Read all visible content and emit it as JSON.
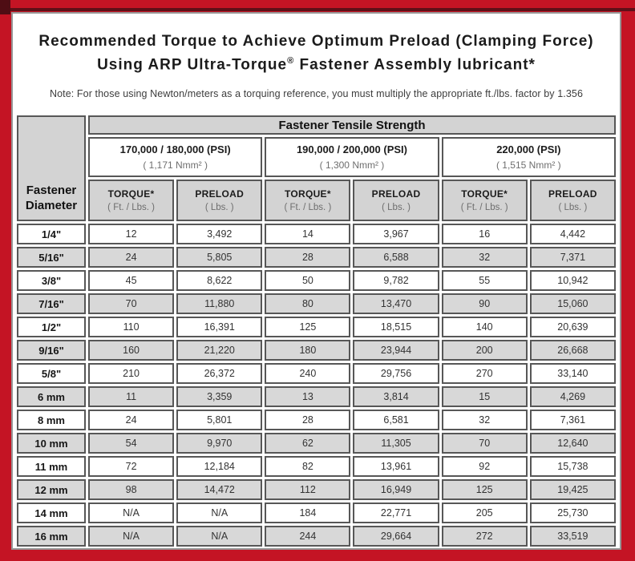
{
  "header": {
    "title_line1": "Recommended Torque to Achieve Optimum Preload (Clamping Force)",
    "title_line2": {
      "pre": "Using ARP Ultra-Torque",
      "sup": "®",
      "post": " Fastener Assembly lubricant*"
    },
    "note": "Note: For those using Newton/meters as a torquing reference, you must multiply the appropriate ft./lbs. factor by 1.356"
  },
  "table": {
    "tensile_strength_header": "Fastener Tensile Strength",
    "diameter_header": {
      "line1": "Fastener",
      "line2": "Diameter"
    },
    "strength_groups": [
      {
        "psi": "170,000 / 180,000 (PSI)",
        "nmm": "( 1,171 Nmm² )"
      },
      {
        "psi": "190,000 / 200,000 (PSI)",
        "nmm": "( 1,300 Nmm² )"
      },
      {
        "psi": "220,000 (PSI)",
        "nmm": "( 1,515 Nmm² )"
      }
    ],
    "column_headers": {
      "torque": {
        "label": "TORQUE*",
        "unit": "( Ft. / Lbs. )"
      },
      "preload": {
        "label": "PRELOAD",
        "unit": "( Lbs. )"
      }
    },
    "rows": [
      {
        "diameter": "1/4\"",
        "values": [
          "12",
          "3,492",
          "14",
          "3,967",
          "16",
          "4,442"
        ]
      },
      {
        "diameter": "5/16\"",
        "values": [
          "24",
          "5,805",
          "28",
          "6,588",
          "32",
          "7,371"
        ]
      },
      {
        "diameter": "3/8\"",
        "values": [
          "45",
          "8,622",
          "50",
          "9,782",
          "55",
          "10,942"
        ]
      },
      {
        "diameter": "7/16\"",
        "values": [
          "70",
          "11,880",
          "80",
          "13,470",
          "90",
          "15,060"
        ]
      },
      {
        "diameter": "1/2\"",
        "values": [
          "110",
          "16,391",
          "125",
          "18,515",
          "140",
          "20,639"
        ]
      },
      {
        "diameter": "9/16\"",
        "values": [
          "160",
          "21,220",
          "180",
          "23,944",
          "200",
          "26,668"
        ]
      },
      {
        "diameter": "5/8\"",
        "values": [
          "210",
          "26,372",
          "240",
          "29,756",
          "270",
          "33,140"
        ]
      },
      {
        "diameter": "6 mm",
        "values": [
          "11",
          "3,359",
          "13",
          "3,814",
          "15",
          "4,269"
        ]
      },
      {
        "diameter": "8 mm",
        "values": [
          "24",
          "5,801",
          "28",
          "6,581",
          "32",
          "7,361"
        ]
      },
      {
        "diameter": "10 mm",
        "values": [
          "54",
          "9,970",
          "62",
          "11,305",
          "70",
          "12,640"
        ]
      },
      {
        "diameter": "11 mm",
        "values": [
          "72",
          "12,184",
          "82",
          "13,961",
          "92",
          "15,738"
        ]
      },
      {
        "diameter": "12 mm",
        "values": [
          "98",
          "14,472",
          "112",
          "16,949",
          "125",
          "19,425"
        ]
      },
      {
        "diameter": "14 mm",
        "values": [
          "N/A",
          "N/A",
          "184",
          "22,771",
          "205",
          "25,730"
        ]
      },
      {
        "diameter": "16 mm",
        "values": [
          "N/A",
          "N/A",
          "244",
          "29,664",
          "272",
          "33,519"
        ]
      }
    ]
  },
  "colors": {
    "frame_red": "#c41424",
    "frame_dark_line": "#5e1018",
    "panel_border_gray": "#969696",
    "cell_border_gray": "#575757",
    "striped_row_gray": "#d8d8d8",
    "header_gray": "#d3d3d3"
  }
}
